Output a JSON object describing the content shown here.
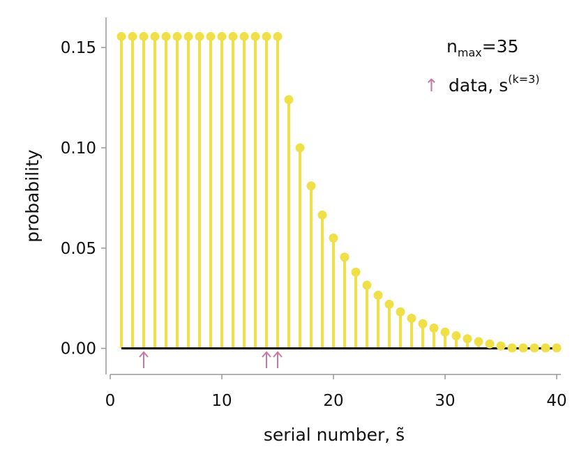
{
  "chart_data": {
    "type": "stem",
    "xlabel": "serial number, s̃",
    "ylabel": "probability",
    "xlim": [
      0,
      40
    ],
    "ylim": [
      -0.013,
      0.165
    ],
    "xticks": [
      "0",
      "10",
      "20",
      "30",
      "40"
    ],
    "yticks": [
      "0.00",
      "0.05",
      "0.10",
      "0.15"
    ],
    "grid": false,
    "legend_placement": "top-right",
    "series": [
      {
        "x": [
          1,
          2,
          3,
          4,
          5,
          6,
          7,
          8,
          9,
          10,
          11,
          12,
          13,
          14,
          15,
          16,
          17,
          18,
          19,
          20,
          21,
          22,
          23,
          24,
          25,
          26,
          27,
          28,
          29,
          30,
          31,
          32,
          33,
          34,
          35,
          36,
          37,
          38,
          39,
          40
        ],
        "values": [
          0.1555,
          0.1555,
          0.1555,
          0.1555,
          0.1555,
          0.1555,
          0.1555,
          0.1555,
          0.1555,
          0.1555,
          0.1555,
          0.1555,
          0.1555,
          0.1555,
          0.1555,
          0.124,
          0.1,
          0.081,
          0.0665,
          0.055,
          0.0455,
          0.038,
          0.0315,
          0.0265,
          0.022,
          0.0182,
          0.015,
          0.0123,
          0.0101,
          0.0081,
          0.0063,
          0.0048,
          0.0034,
          0.0022,
          0.0012,
          0.0002,
          0.0002,
          0.0002,
          0.0002,
          0.0002
        ]
      }
    ],
    "data_arrows": [
      3,
      14,
      15
    ],
    "legend": {
      "nmax_label": "n",
      "nmax_sub": "max",
      "nmax_value": "=35",
      "arrow_glyph": "↑",
      "data_label": "data, s",
      "data_sup": "(k=3)"
    },
    "colors": {
      "stem": "#efe04a",
      "arrow": "#c978a6",
      "baseline": "#000000"
    }
  }
}
